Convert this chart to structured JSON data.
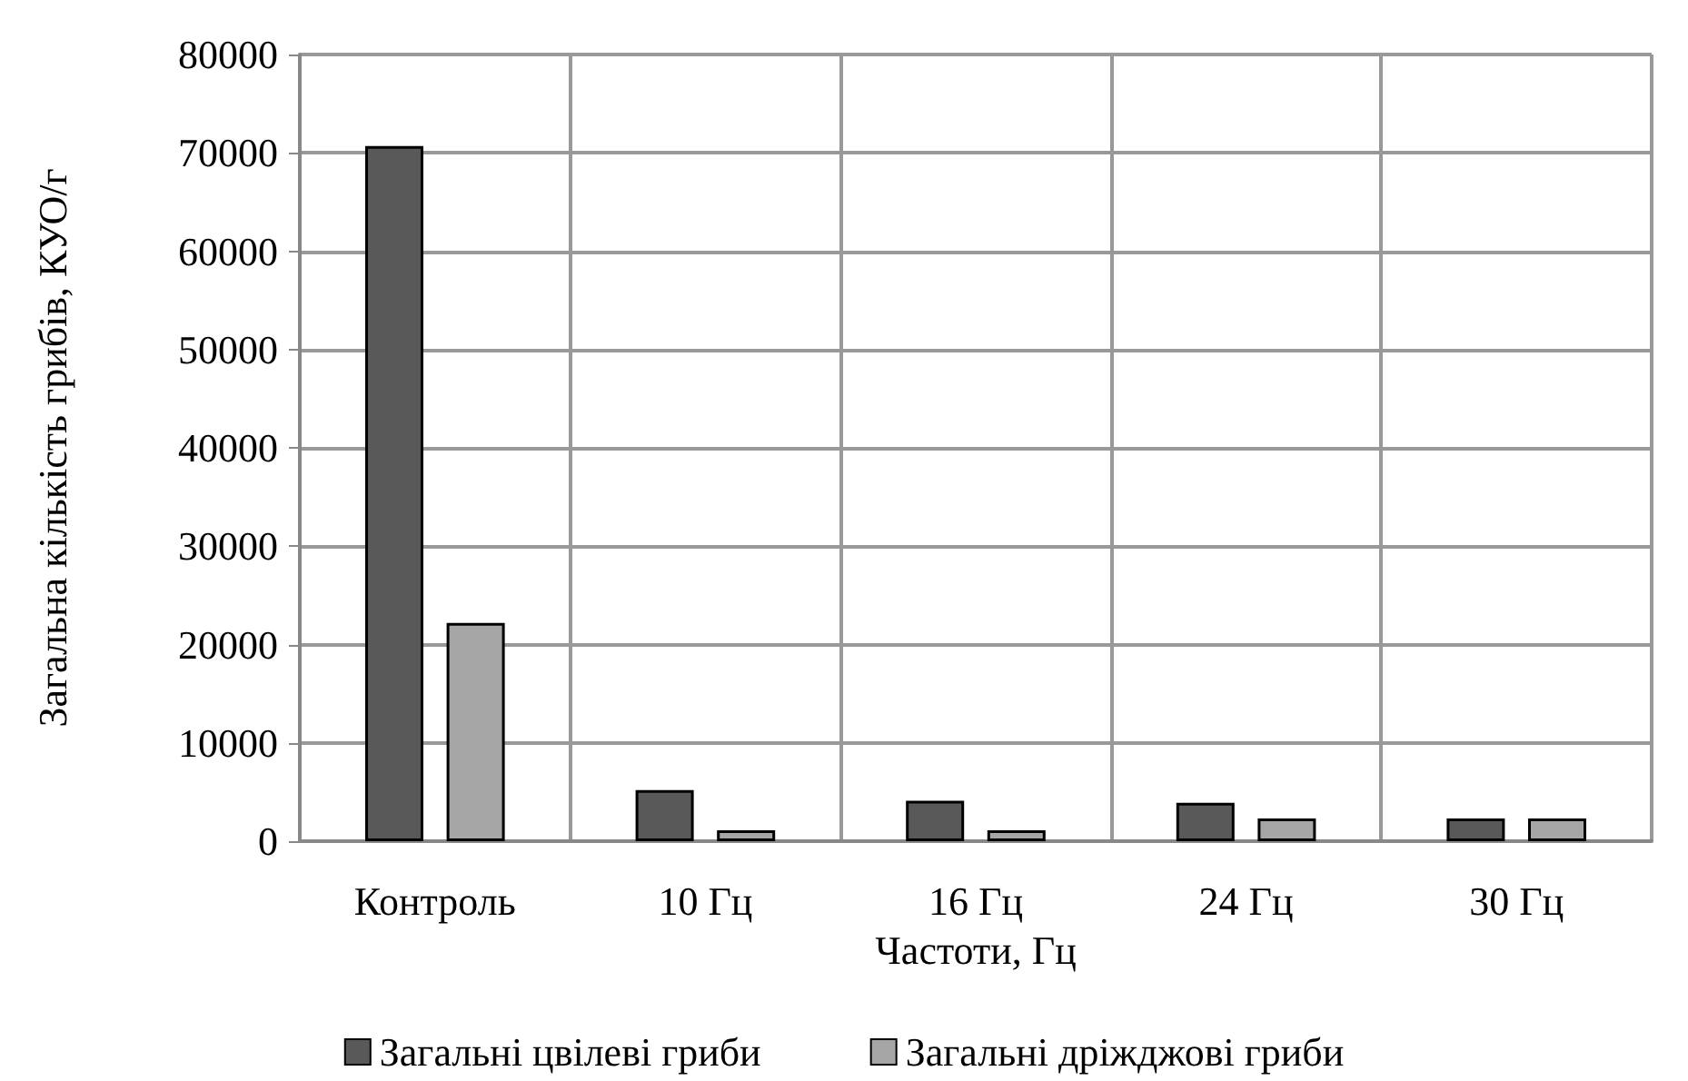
{
  "chart_data": {
    "type": "bar",
    "xlabel": "Частоти, Гц",
    "ylabel": "Загальна кількість грибів, КУО/г",
    "categories": [
      "Контроль",
      "10 Гц",
      "16 Гц",
      "24 Гц",
      "30 Гц"
    ],
    "series": [
      {
        "name": "Загальні цвілеві гриби",
        "color": "#595959",
        "values": [
          70700,
          5200,
          4100,
          3900,
          2300
        ]
      },
      {
        "name": "Загальні дріжджові гриби",
        "color": "#a6a6a6",
        "values": [
          22200,
          1100,
          1100,
          2300,
          2300
        ]
      }
    ],
    "ylim": [
      0,
      80000
    ],
    "yticks": [
      0,
      10000,
      20000,
      30000,
      40000,
      50000,
      60000,
      70000,
      80000
    ],
    "grid": true,
    "legend": "bottom"
  }
}
